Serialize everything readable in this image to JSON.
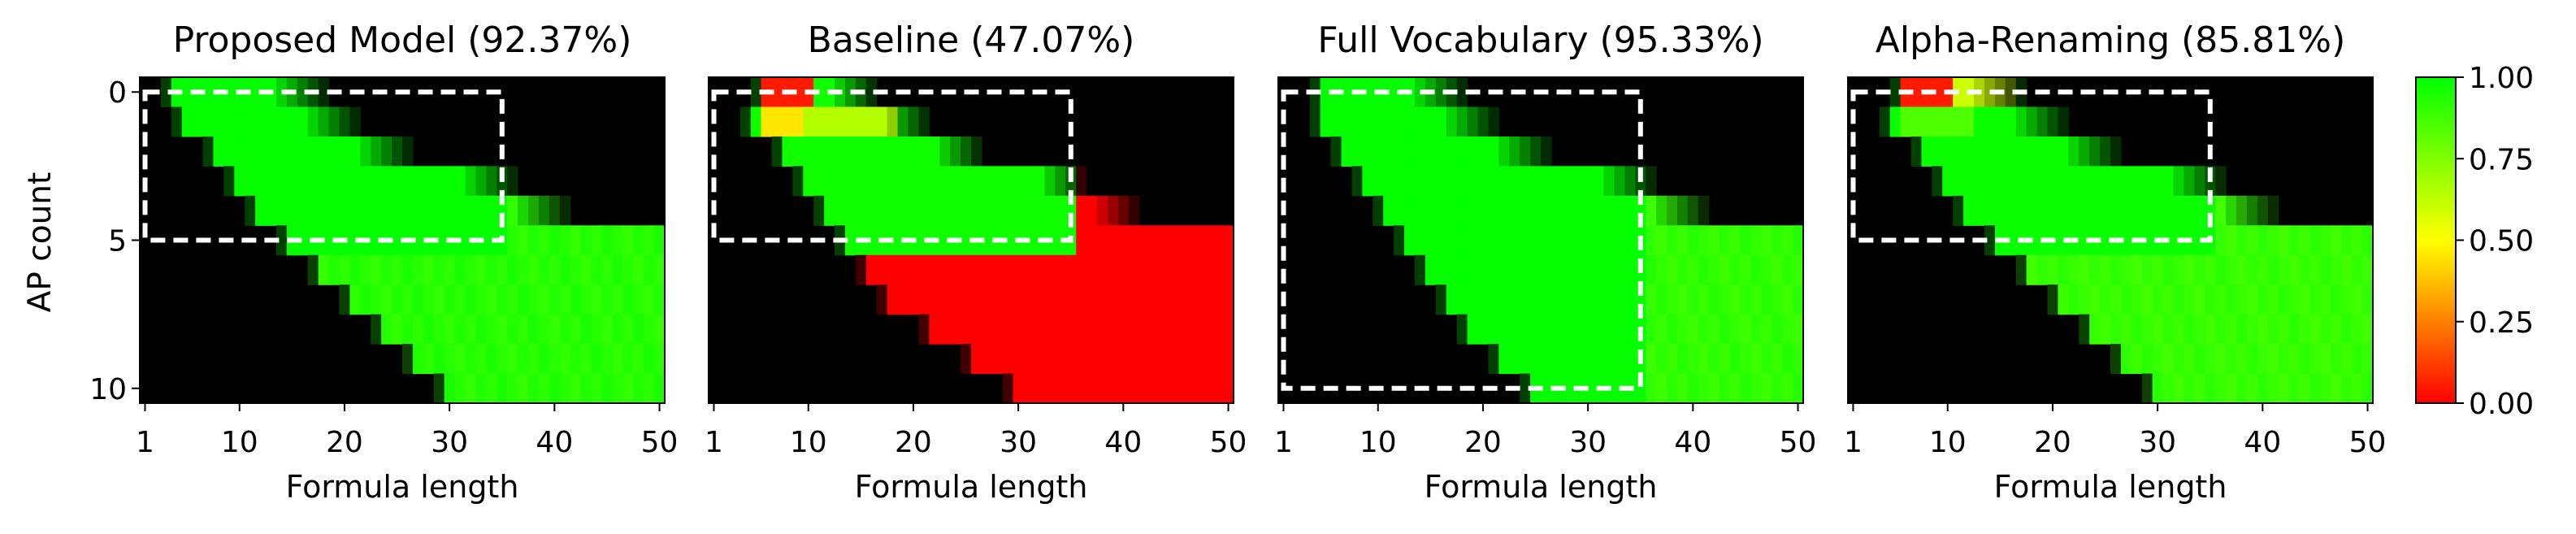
{
  "chart_data": {
    "type": "heatmap",
    "shared_ylabel": "AP count",
    "colorbar": {
      "min": 0.0,
      "max": 1.0,
      "ticks": [
        "0.00",
        "0.25",
        "0.50",
        "0.75",
        "1.00"
      ],
      "colors": [
        "#ff0000",
        "#ffff00",
        "#00ff00"
      ]
    },
    "x_ticks": [
      "1",
      "10",
      "20",
      "30",
      "40",
      "50"
    ],
    "y_ticks": [
      "0",
      "5",
      "10"
    ],
    "panels": [
      {
        "title": "Proposed Model (92.37%)",
        "xlabel": "Formula length",
        "region": {
          "ap_min": 0,
          "ap_max": 5,
          "len_min": 1,
          "len_max": 35
        },
        "lower_bound": [
          4,
          5,
          8,
          10,
          12,
          15,
          18,
          21,
          24,
          27,
          30
        ],
        "upper_bound": [
          18,
          21,
          26,
          36,
          41,
          50,
          50,
          50,
          50,
          50,
          50
        ],
        "fade_length": 5,
        "value_in_region": 0.99,
        "value_out_region": 0.95,
        "low_spots": []
      },
      {
        "title": "Baseline (47.07%)",
        "xlabel": "Formula length",
        "region": {
          "ap_min": 0,
          "ap_max": 5,
          "len_min": 1,
          "len_max": 35
        },
        "lower_bound": [
          6,
          5,
          8,
          10,
          12,
          14,
          16,
          18,
          22,
          26,
          30
        ],
        "upper_bound": [
          16,
          21,
          26,
          36,
          41,
          50,
          50,
          50,
          50,
          50,
          50
        ],
        "fade_length": 4,
        "value_in_region": 0.97,
        "value_out_region": 0.0,
        "low_spots": [
          {
            "ap": 0,
            "len_from": 6,
            "len_to": 10,
            "value": 0.05
          },
          {
            "ap": 1,
            "len_from": 6,
            "len_to": 9,
            "value": 0.45
          },
          {
            "ap": 1,
            "len_from": 10,
            "len_to": 18,
            "value": 0.65
          }
        ]
      },
      {
        "title": "Full Vocabulary (95.33%)",
        "xlabel": "Formula length",
        "region": {
          "ap_min": 0,
          "ap_max": 10,
          "len_min": 1,
          "len_max": 35
        },
        "lower_bound": [
          5,
          5,
          7,
          9,
          11,
          13,
          15,
          17,
          19,
          22,
          25
        ],
        "upper_bound": [
          18,
          21,
          26,
          36,
          41,
          50,
          50,
          50,
          50,
          50,
          50
        ],
        "fade_length": 5,
        "value_in_region": 0.99,
        "value_out_region": 0.93,
        "low_spots": []
      },
      {
        "title": "Alpha-Renaming (85.81%)",
        "xlabel": "Formula length",
        "region": {
          "ap_min": 0,
          "ap_max": 5,
          "len_min": 1,
          "len_max": 35
        },
        "lower_bound": [
          6,
          5,
          8,
          10,
          12,
          15,
          18,
          21,
          24,
          27,
          30
        ],
        "upper_bound": [
          17,
          21,
          26,
          36,
          41,
          50,
          50,
          50,
          50,
          50,
          50
        ],
        "fade_length": 5,
        "value_in_region": 0.98,
        "value_out_region": 0.92,
        "low_spots": [
          {
            "ap": 0,
            "len_from": 6,
            "len_to": 10,
            "value": 0.05
          },
          {
            "ap": 0,
            "len_from": 11,
            "len_to": 16,
            "value": 0.6
          },
          {
            "ap": 1,
            "len_from": 6,
            "len_to": 12,
            "value": 0.85
          }
        ]
      }
    ]
  }
}
